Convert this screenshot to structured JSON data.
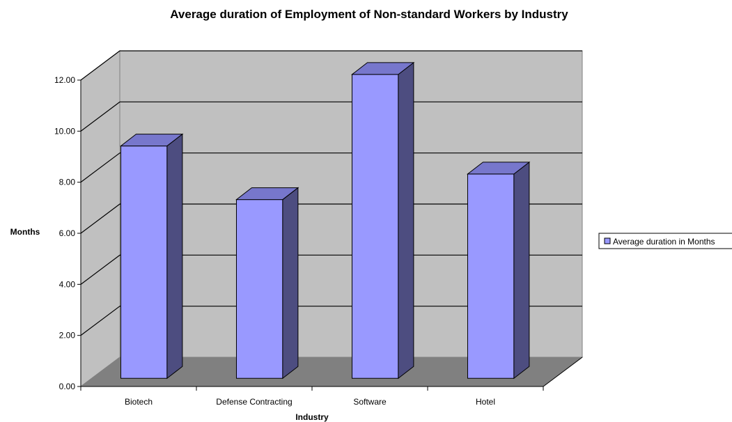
{
  "chart_data": {
    "type": "bar",
    "style": "3d-column",
    "title": "Average duration of Employment of Non-standard Workers by Industry",
    "xlabel": "Industry",
    "ylabel": "Months",
    "categories": [
      "Biotech",
      "Defense Contracting",
      "Software",
      "Hotel"
    ],
    "series": [
      {
        "name": "Average duration in Months",
        "values": [
          9.1,
          7.0,
          11.9,
          8.0
        ]
      }
    ],
    "ylim": [
      0,
      12
    ],
    "yticks": [
      "0.00",
      "2.00",
      "4.00",
      "6.00",
      "8.00",
      "10.00",
      "12.00"
    ],
    "grid": true,
    "legend_position": "right",
    "colors": {
      "bar_front": "#9999ff",
      "bar_side": "#4d4d80",
      "bar_top": "#7777cc",
      "wall": "#c0c0c0",
      "floor": "#808080"
    }
  }
}
